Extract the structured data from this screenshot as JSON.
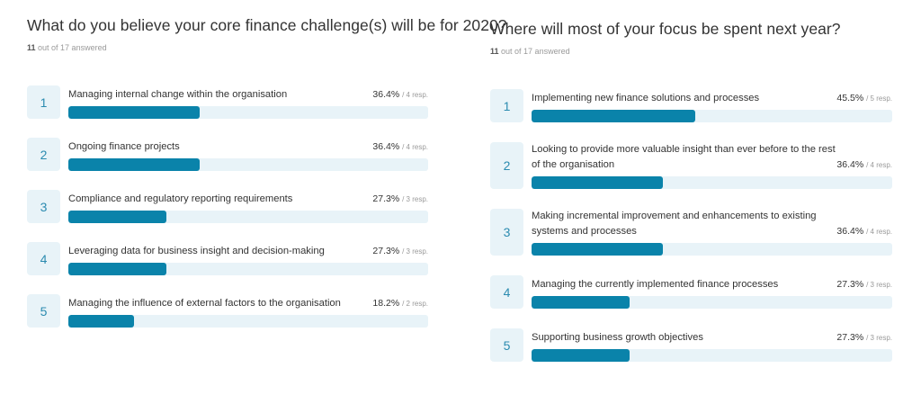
{
  "chart_data": [
    {
      "type": "bar",
      "orientation": "horizontal",
      "title": "What do you believe your core finance challenge(s) will be for 2020?",
      "subtitle": {
        "answered": "11",
        "rest": "out of 17 answered"
      },
      "xlim": [
        0,
        100
      ],
      "unit": "%",
      "categories": [
        "Managing internal change within the organisation",
        "Ongoing finance projects",
        "Compliance and regulatory reporting requirements",
        "Leveraging data for business insight and decision-making",
        "Managing the influence of external factors to the organisation"
      ],
      "ranks": [
        "1",
        "2",
        "3",
        "4",
        "5"
      ],
      "values": [
        36.4,
        36.4,
        27.3,
        27.3,
        18.2
      ],
      "value_labels": [
        "36.4%",
        "36.4%",
        "27.3%",
        "27.3%",
        "18.2%"
      ],
      "responses": [
        "/ 4 resp.",
        "/ 4 resp.",
        "/ 3 resp.",
        "/ 3 resp.",
        "/ 2 resp."
      ]
    },
    {
      "type": "bar",
      "orientation": "horizontal",
      "title": "Where will most of your focus be spent next year?",
      "subtitle": {
        "answered": "11",
        "rest": "out of 17 answered"
      },
      "xlim": [
        0,
        100
      ],
      "unit": "%",
      "categories": [
        "Implementing new finance solutions and processes",
        "Looking to provide more valuable insight than ever before to the rest of the organisation",
        "Making incremental improvement and enhancements to existing systems and processes",
        "Managing the currently implemented finance processes",
        "Supporting business growth objectives"
      ],
      "ranks": [
        "1",
        "2",
        "3",
        "4",
        "5"
      ],
      "values": [
        45.5,
        36.4,
        36.4,
        27.3,
        27.3
      ],
      "value_labels": [
        "45.5%",
        "36.4%",
        "36.4%",
        "27.3%",
        "27.3%"
      ],
      "responses": [
        "/ 5 resp.",
        "/ 4 resp.",
        "/ 4 resp.",
        "/ 3 resp.",
        "/ 3 resp."
      ]
    }
  ],
  "colors": {
    "bar_fill": "#0a83aa",
    "bar_track": "#e8f3f8",
    "rank_bg": "#e8f3f8",
    "rank_text": "#2b8bb0"
  }
}
